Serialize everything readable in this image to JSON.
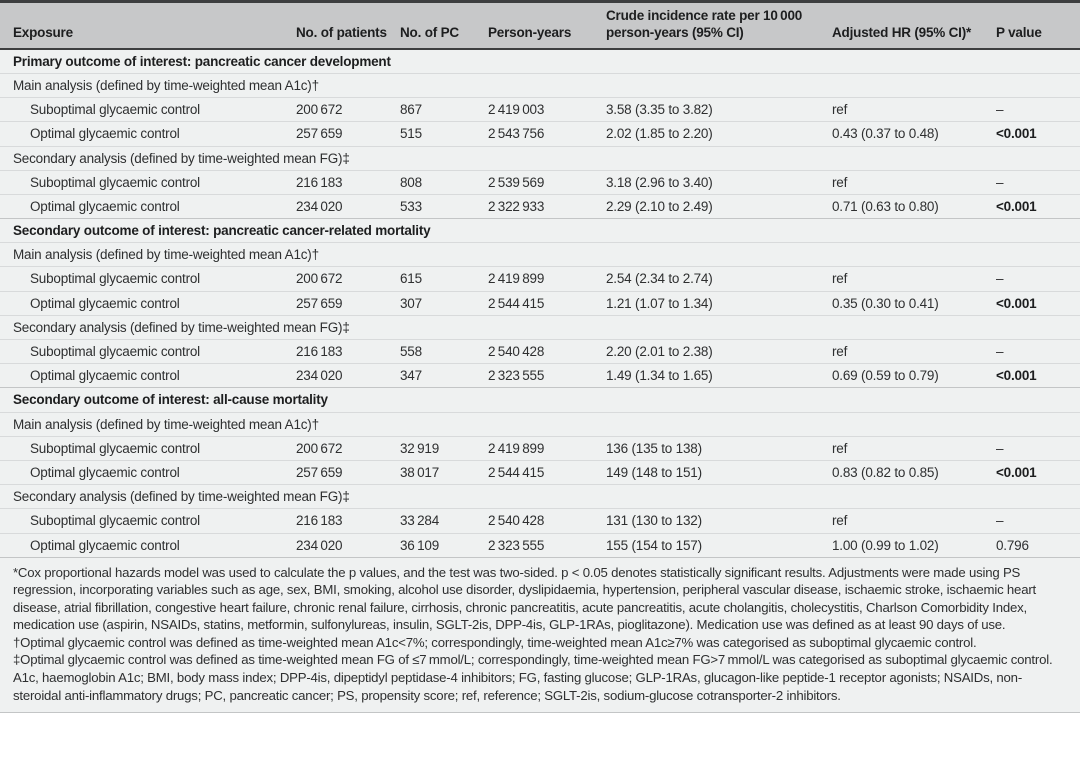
{
  "colors": {
    "header_bg": "#c7c8c9",
    "row_bg": "#eff1f1",
    "rule_dark": "#3d3e3f",
    "rule_light": "#d8dadb"
  },
  "table": {
    "columns": [
      "Exposure",
      "No. of patients",
      "No. of PC",
      "Person-years",
      "Crude incidence rate per 10 000 person-years (95% CI)",
      "Adjusted HR (95% CI)*",
      "P value"
    ],
    "rows": [
      {
        "type": "section",
        "label": "Primary outcome of interest: pancreatic cancer development"
      },
      {
        "type": "subsection",
        "label": "Main analysis (defined by time-weighted mean A1c)†"
      },
      {
        "type": "data",
        "label": "Suboptimal glycaemic control",
        "patients": "200 672",
        "pc": "867",
        "person_years": "2 419 003",
        "crude": "3.58 (3.35 to 3.82)",
        "hr": "ref",
        "p": "–",
        "p_bold": false
      },
      {
        "type": "data",
        "label": "Optimal glycaemic control",
        "patients": "257 659",
        "pc": "515",
        "person_years": "2 543 756",
        "crude": "2.02 (1.85 to 2.20)",
        "hr": "0.43 (0.37 to 0.48)",
        "p": "<0.001",
        "p_bold": true
      },
      {
        "type": "subsection",
        "label": "Secondary analysis (defined by time-weighted mean FG)‡"
      },
      {
        "type": "data",
        "label": "Suboptimal glycaemic control",
        "patients": "216 183",
        "pc": "808",
        "person_years": "2 539 569",
        "crude": "3.18 (2.96 to 3.40)",
        "hr": "ref",
        "p": "–",
        "p_bold": false
      },
      {
        "type": "data",
        "label": "Optimal glycaemic control",
        "patients": "234 020",
        "pc": "533",
        "person_years": "2 322 933",
        "crude": "2.29 (2.10 to 2.49)",
        "hr": "0.71 (0.63 to 0.80)",
        "p": "<0.001",
        "p_bold": true
      },
      {
        "type": "section",
        "label": "Secondary outcome of interest: pancreatic cancer-related mortality"
      },
      {
        "type": "subsection",
        "label": "Main analysis (defined by time-weighted mean A1c)†"
      },
      {
        "type": "data",
        "label": "Suboptimal glycaemic control",
        "patients": "200 672",
        "pc": "615",
        "person_years": "2 419 899",
        "crude": "2.54 (2.34 to 2.74)",
        "hr": "ref",
        "p": "–",
        "p_bold": false
      },
      {
        "type": "data",
        "label": "Optimal glycaemic control",
        "patients": "257 659",
        "pc": "307",
        "person_years": "2 544 415",
        "crude": "1.21 (1.07 to 1.34)",
        "hr": "0.35 (0.30 to 0.41)",
        "p": "<0.001",
        "p_bold": true
      },
      {
        "type": "subsection",
        "label": "Secondary analysis (defined by time-weighted mean FG)‡"
      },
      {
        "type": "data",
        "label": "Suboptimal glycaemic control",
        "patients": "216 183",
        "pc": "558",
        "person_years": "2 540 428",
        "crude": "2.20 (2.01 to 2.38)",
        "hr": "ref",
        "p": "–",
        "p_bold": false
      },
      {
        "type": "data",
        "label": "Optimal glycaemic control",
        "patients": "234 020",
        "pc": "347",
        "person_years": "2 323 555",
        "crude": "1.49 (1.34 to 1.65)",
        "hr": "0.69 (0.59 to 0.79)",
        "p": "<0.001",
        "p_bold": true
      },
      {
        "type": "section",
        "label": "Secondary outcome of interest: all-cause mortality"
      },
      {
        "type": "subsection",
        "label": "Main analysis (defined by time-weighted mean A1c)†"
      },
      {
        "type": "data",
        "label": "Suboptimal glycaemic control",
        "patients": "200 672",
        "pc": "32 919",
        "person_years": "2 419 899",
        "crude": "136 (135 to 138)",
        "hr": "ref",
        "p": "–",
        "p_bold": false
      },
      {
        "type": "data",
        "label": "Optimal glycaemic control",
        "patients": "257 659",
        "pc": "38 017",
        "person_years": "2 544 415",
        "crude": "149 (148 to 151)",
        "hr": "0.83 (0.82 to 0.85)",
        "p": "<0.001",
        "p_bold": true
      },
      {
        "type": "subsection",
        "label": "Secondary analysis (defined by time-weighted mean FG)‡"
      },
      {
        "type": "data",
        "label": "Suboptimal glycaemic control",
        "patients": "216 183",
        "pc": "33 284",
        "person_years": "2 540 428",
        "crude": "131 (130 to 132)",
        "hr": "ref",
        "p": "–",
        "p_bold": false
      },
      {
        "type": "data",
        "label": "Optimal glycaemic control",
        "patients": "234 020",
        "pc": "36 109",
        "person_years": "2 323 555",
        "crude": "155 (154 to 157)",
        "hr": "1.00 (0.99 to 1.02)",
        "p": "0.796",
        "p_bold": false
      }
    ]
  },
  "footnotes": {
    "items": [
      "*Cox proportional hazards model was used to calculate the p values, and the test was two-sided. p < 0.05 denotes statistically significant results. Adjustments were made using PS regression, incorporating variables such as age, sex, BMI, smoking, alcohol use disorder, dyslipidaemia, hypertension, peripheral vascular disease, ischaemic stroke, ischaemic heart disease, atrial fibrillation, congestive heart failure, chronic renal failure, cirrhosis, chronic pancreatitis, acute pancreatitis, acute cholangitis, cholecystitis, Charlson Comorbidity Index, medication use (aspirin, NSAIDs, statins, metformin, sulfonylureas, insulin, SGLT-2is, DPP-4is, GLP-1RAs, pioglitazone). Medication use was defined as at least 90 days of use.",
      "†Optimal glycaemic control was defined as time-weighted mean A1c<7%; correspondingly, time-weighted mean A1c≥7% was categorised as suboptimal glycaemic control.",
      "‡Optimal glycaemic control was defined as time-weighted mean FG of ≤7 mmol/L; correspondingly, time-weighted mean FG>7 mmol/L was categorised as suboptimal glycaemic control.",
      "A1c, haemoglobin A1c; BMI, body mass index; DPP-4is, dipeptidyl peptidase-4 inhibitors; FG, fasting glucose; GLP-1RAs, glucagon-like peptide-1 receptor agonists; NSAIDs, non-steroidal anti-inflammatory drugs; PC, pancreatic cancer; PS, propensity score; ref, reference; SGLT-2is, sodium-glucose cotransporter-2 inhibitors."
    ]
  }
}
